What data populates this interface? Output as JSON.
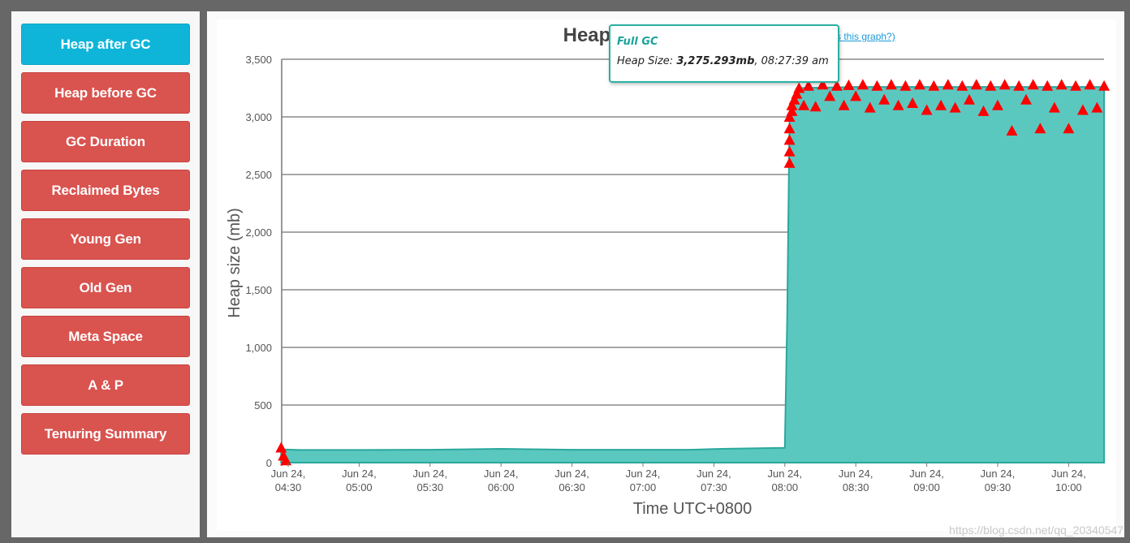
{
  "sidebar": {
    "items": [
      {
        "label": "Heap after GC",
        "active": true
      },
      {
        "label": "Heap before GC",
        "active": false
      },
      {
        "label": "GC Duration",
        "active": false
      },
      {
        "label": "Reclaimed Bytes",
        "active": false
      },
      {
        "label": "Young Gen",
        "active": false
      },
      {
        "label": "Old Gen",
        "active": false
      },
      {
        "label": "Meta Space",
        "active": false
      },
      {
        "label": "A & P",
        "active": false
      },
      {
        "label": "Tenuring Summary",
        "active": false
      }
    ]
  },
  "chart": {
    "title": "Heap Usage (after GC)",
    "help_link": "(What is this graph?)",
    "tooltip": {
      "title": "Full GC",
      "label": "Heap Size: ",
      "value": "3,275.293mb",
      "time": ", 08:27:39 am"
    }
  },
  "chart_data": {
    "type": "area",
    "title": "Heap Usage (after GC)",
    "xlabel": "Time UTC+0800",
    "ylabel": "Heap size (mb)",
    "ylim": [
      0,
      3500
    ],
    "yticks": [
      "0",
      "500",
      "1,000",
      "1,500",
      "2,000",
      "2,500",
      "3,000",
      "3,500"
    ],
    "xticks": [
      [
        "Jun 24,",
        "04:30"
      ],
      [
        "Jun 24,",
        "05:00"
      ],
      [
        "Jun 24,",
        "05:30"
      ],
      [
        "Jun 24,",
        "06:00"
      ],
      [
        "Jun 24,",
        "06:30"
      ],
      [
        "Jun 24,",
        "07:00"
      ],
      [
        "Jun 24,",
        "07:30"
      ],
      [
        "Jun 24,",
        "08:00"
      ],
      [
        "Jun 24,",
        "08:30"
      ],
      [
        "Jun 24,",
        "09:00"
      ],
      [
        "Jun 24,",
        "09:30"
      ],
      [
        "Jun 24,",
        "10:00"
      ]
    ],
    "xlim": [
      "04:27",
      "10:15"
    ],
    "series": [
      {
        "name": "",
        "color": "#5bc8c0",
        "points": [
          [
            "04:27",
            130
          ],
          [
            "04:28",
            115
          ],
          [
            "04:35",
            110
          ],
          [
            "05:00",
            110
          ],
          [
            "05:30",
            112
          ],
          [
            "06:00",
            120
          ],
          [
            "06:30",
            112
          ],
          [
            "07:00",
            112
          ],
          [
            "07:20",
            112
          ],
          [
            "07:30",
            118
          ],
          [
            "08:00",
            128
          ],
          [
            "08:01",
            1250
          ],
          [
            "08:02",
            3000
          ],
          [
            "08:05",
            3250
          ],
          [
            "08:30",
            3260
          ],
          [
            "09:00",
            3260
          ],
          [
            "09:30",
            3260
          ],
          [
            "10:00",
            3260
          ],
          [
            "10:15",
            3260
          ]
        ]
      }
    ],
    "full_gc_markers": {
      "color": "#ff0000",
      "points": [
        [
          "04:27",
          130
        ],
        [
          "04:28",
          60
        ],
        [
          "04:29",
          20
        ],
        [
          "08:02",
          2600
        ],
        [
          "08:02",
          2700
        ],
        [
          "08:02",
          2800
        ],
        [
          "08:02",
          2900
        ],
        [
          "08:02",
          3000
        ],
        [
          "08:03",
          3050
        ],
        [
          "08:03",
          3100
        ],
        [
          "08:04",
          3150
        ],
        [
          "08:05",
          3200
        ],
        [
          "08:06",
          3250
        ],
        [
          "08:08",
          3100
        ],
        [
          "08:10",
          3270
        ],
        [
          "08:13",
          3090
        ],
        [
          "08:16",
          3280
        ],
        [
          "08:19",
          3180
        ],
        [
          "08:22",
          3270
        ],
        [
          "08:25",
          3100
        ],
        [
          "08:27",
          3275
        ],
        [
          "08:30",
          3180
        ],
        [
          "08:33",
          3280
        ],
        [
          "08:36",
          3080
        ],
        [
          "08:39",
          3270
        ],
        [
          "08:42",
          3150
        ],
        [
          "08:45",
          3280
        ],
        [
          "08:48",
          3100
        ],
        [
          "08:51",
          3270
        ],
        [
          "08:54",
          3120
        ],
        [
          "08:57",
          3280
        ],
        [
          "09:00",
          3060
        ],
        [
          "09:03",
          3270
        ],
        [
          "09:06",
          3100
        ],
        [
          "09:09",
          3280
        ],
        [
          "09:12",
          3080
        ],
        [
          "09:15",
          3270
        ],
        [
          "09:18",
          3150
        ],
        [
          "09:21",
          3280
        ],
        [
          "09:24",
          3050
        ],
        [
          "09:27",
          3270
        ],
        [
          "09:30",
          3100
        ],
        [
          "09:33",
          3280
        ],
        [
          "09:36",
          2880
        ],
        [
          "09:39",
          3270
        ],
        [
          "09:42",
          3150
        ],
        [
          "09:45",
          3280
        ],
        [
          "09:48",
          2900
        ],
        [
          "09:51",
          3270
        ],
        [
          "09:54",
          3080
        ],
        [
          "09:57",
          3280
        ],
        [
          "10:00",
          2900
        ],
        [
          "10:03",
          3270
        ],
        [
          "10:06",
          3060
        ],
        [
          "10:09",
          3280
        ],
        [
          "10:12",
          3080
        ],
        [
          "10:15",
          3270
        ]
      ]
    }
  },
  "watermark": "https://blog.csdn.net/qq_20340547"
}
